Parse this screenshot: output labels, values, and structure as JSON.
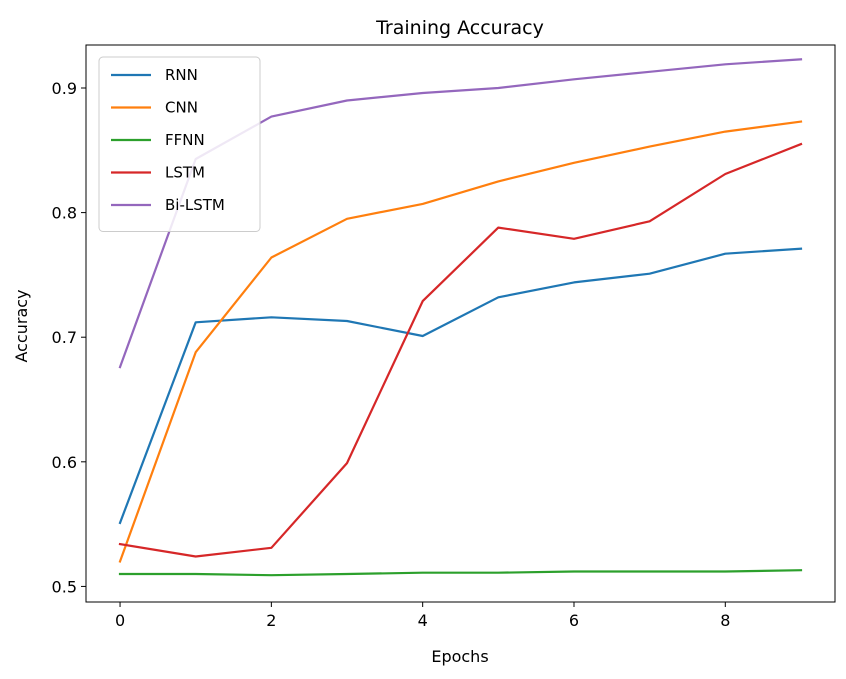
{
  "chart_data": {
    "type": "line",
    "title": "Training Accuracy",
    "xlabel": "Epochs",
    "ylabel": "Accuracy",
    "xlim": [
      -0.45,
      9.45
    ],
    "ylim": [
      0.4875,
      0.9345
    ],
    "x_ticks": [
      0,
      2,
      4,
      6,
      8
    ],
    "y_ticks": [
      0.5,
      0.6,
      0.7,
      0.8,
      0.9
    ],
    "grid": false,
    "legend_position": "top-left",
    "x": [
      0,
      1,
      2,
      3,
      4,
      5,
      6,
      7,
      8,
      9
    ],
    "series": [
      {
        "name": "RNN",
        "color": "#1f77b4",
        "values": [
          0.551,
          0.712,
          0.716,
          0.713,
          0.701,
          0.732,
          0.744,
          0.751,
          0.767,
          0.771
        ]
      },
      {
        "name": "CNN",
        "color": "#ff7f0e",
        "values": [
          0.52,
          0.688,
          0.764,
          0.795,
          0.807,
          0.825,
          0.84,
          0.853,
          0.865,
          0.873
        ]
      },
      {
        "name": "FFNN",
        "color": "#2ca02c",
        "values": [
          0.51,
          0.51,
          0.509,
          0.51,
          0.511,
          0.511,
          0.512,
          0.512,
          0.512,
          0.513
        ]
      },
      {
        "name": "LSTM",
        "color": "#d62728",
        "values": [
          0.534,
          0.524,
          0.531,
          0.599,
          0.729,
          0.788,
          0.779,
          0.793,
          0.831,
          0.855
        ]
      },
      {
        "name": "Bi-LSTM",
        "color": "#9467bd",
        "values": [
          0.676,
          0.843,
          0.877,
          0.89,
          0.896,
          0.9,
          0.907,
          0.913,
          0.919,
          0.923
        ]
      }
    ]
  }
}
